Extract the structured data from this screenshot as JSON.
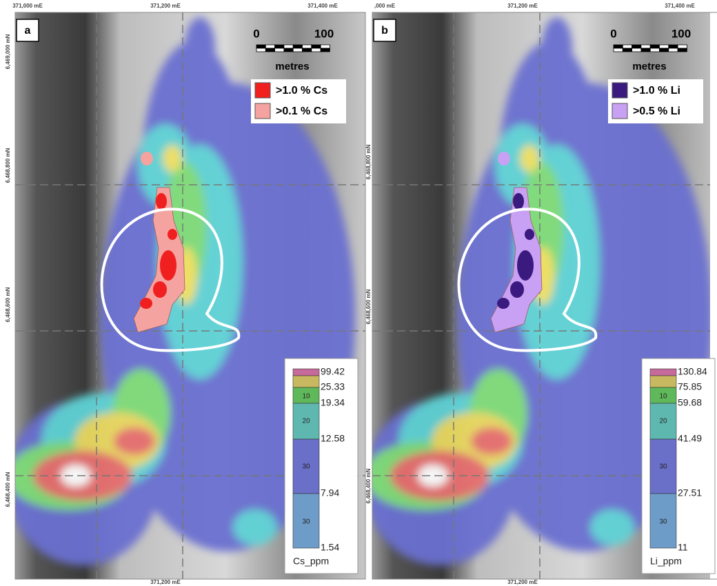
{
  "panels": [
    {
      "label": "a",
      "top_coords": [
        "371,000 mE",
        "371,200 mE",
        "371,400 mE"
      ],
      "bottom_coord": "371,200 mE",
      "left_coords": [
        "6,469,000 mN",
        "6,468,800 mN",
        "6,468,600 mN",
        "6,468,400 mN"
      ],
      "scale_bar": {
        "start": 0,
        "end": 100,
        "unit": "metres"
      },
      "legend": [
        {
          "label": ">1.0 % Cs",
          "color": "#f02020"
        },
        {
          "label": ">0.1 % Cs",
          "color": "#f4a3a0"
        }
      ],
      "color_scale": {
        "breaks": [
          99.42,
          25.33,
          19.34,
          12.58,
          7.94,
          1.54
        ],
        "percentages": [
          10,
          20,
          30,
          30
        ],
        "unit": "Cs_ppm"
      }
    },
    {
      "label": "b",
      "top_coords": [
        ",000 mE",
        "371,200 mE",
        "371,400 mE"
      ],
      "bottom_coord": "371,200 mE",
      "left_coords": [
        "6,468,800 mN",
        "6,468,600 mN",
        "6,468,400 mN"
      ],
      "scale_bar": {
        "start": 0,
        "end": 100,
        "unit": "metres"
      },
      "legend": [
        {
          "label": ">1.0 % Li",
          "color": "#3b1a80"
        },
        {
          "label": ">0.5 % Li",
          "color": "#c8a0f4"
        }
      ],
      "color_scale": {
        "breaks": [
          130.84,
          75.85,
          59.68,
          41.49,
          27.51,
          11
        ],
        "percentages": [
          10,
          20,
          30,
          30
        ],
        "unit": "Li_ppm"
      }
    }
  ]
}
